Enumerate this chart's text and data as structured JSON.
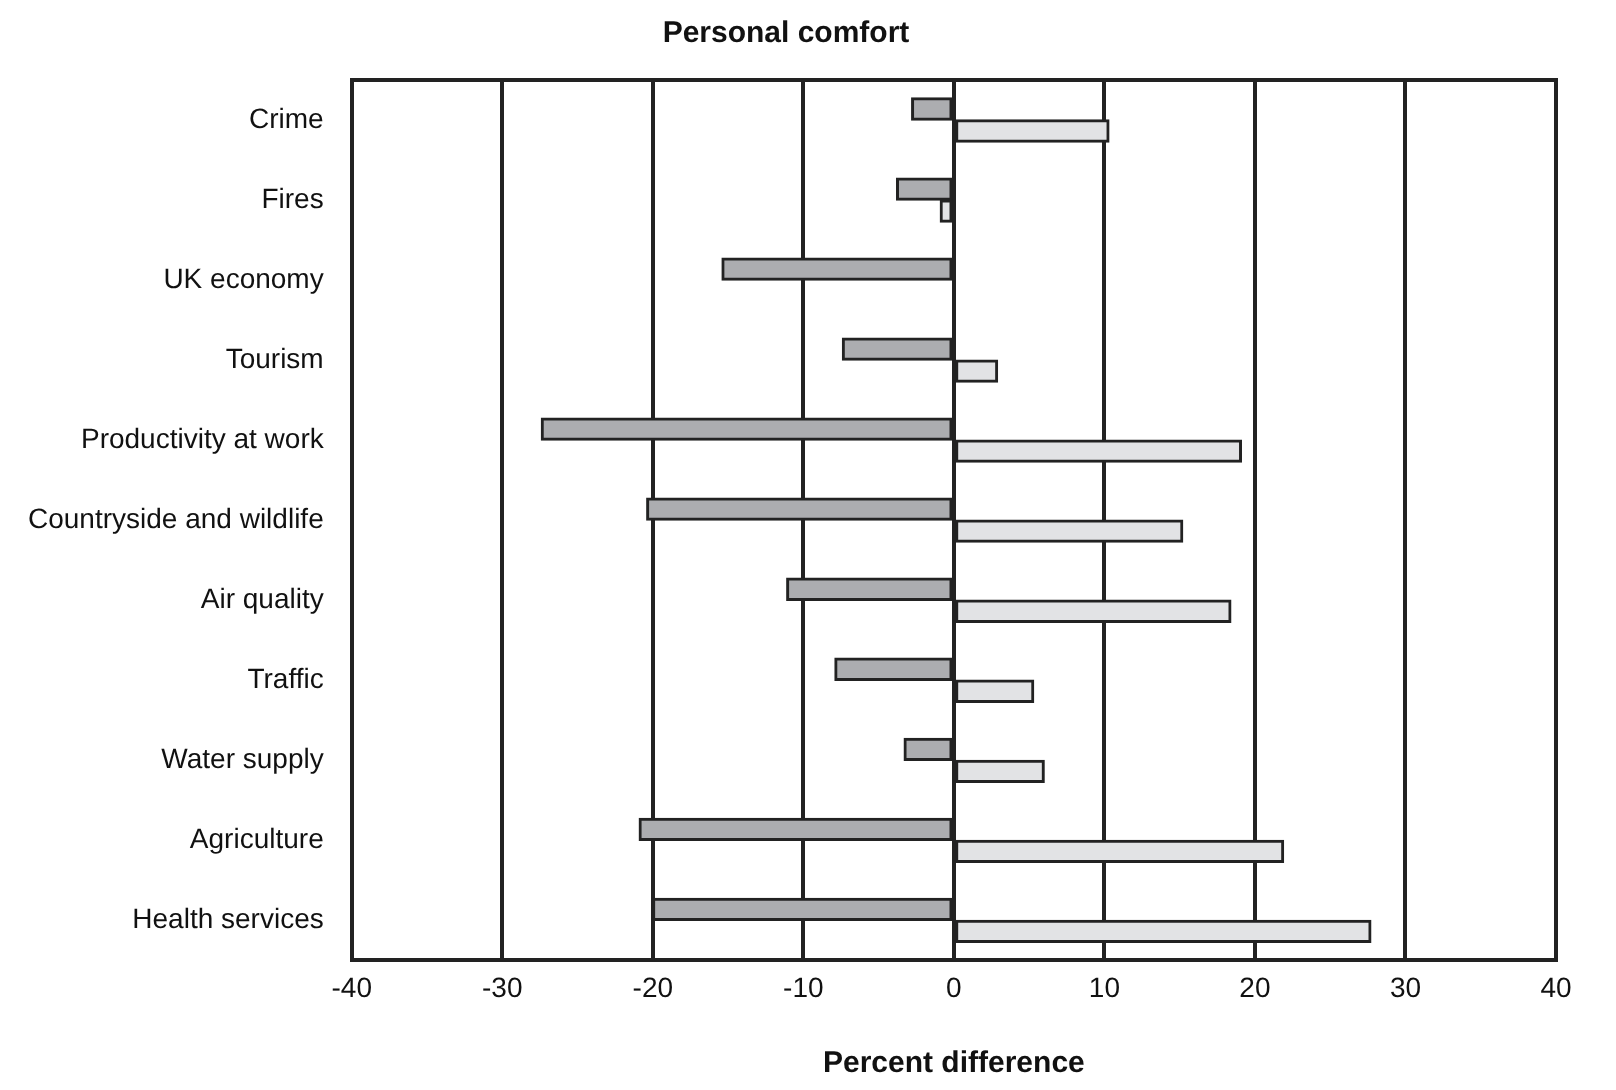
{
  "chart_data": {
    "type": "bar",
    "orientation": "horizontal",
    "title": "Personal comfort",
    "xlabel": "Percent difference",
    "categories": [
      "Crime",
      "Fires",
      "UK economy",
      "Tourism",
      "Productivity at work",
      "Countryside and wildlife",
      "Air quality",
      "Traffic",
      "Water supply",
      "Agriculture",
      "Health services"
    ],
    "series": [
      {
        "color": "#acadb0",
        "values": [
          -2.8,
          -3.8,
          -15.4,
          -7.4,
          -27.4,
          -20.4,
          -11.1,
          -7.9,
          -3.3,
          -20.9,
          -20.0
        ]
      },
      {
        "color": "#e2e3e5",
        "values": [
          10.3,
          -0.9,
          null,
          2.9,
          19.1,
          15.2,
          18.4,
          5.3,
          6.0,
          21.9,
          27.7
        ]
      }
    ],
    "xlim": [
      -40,
      40
    ],
    "xticks": [
      -40,
      -30,
      -20,
      -10,
      0,
      10,
      20,
      30,
      40
    ],
    "grid": "x",
    "legend": false
  }
}
